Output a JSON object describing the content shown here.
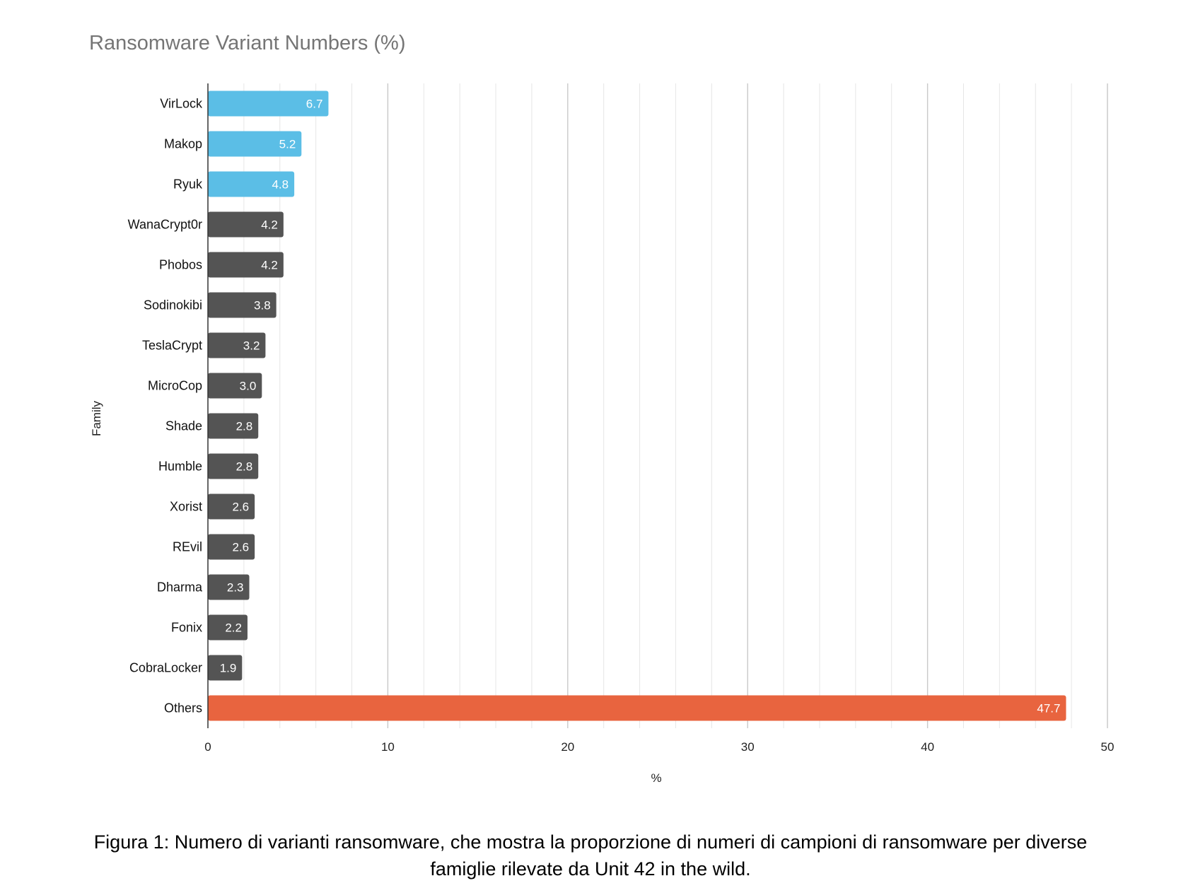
{
  "chart_data": {
    "type": "bar",
    "orientation": "horizontal",
    "title": "Ransomware Variant Numbers (%)",
    "xlabel": "%",
    "ylabel": "Family",
    "xlim": [
      0,
      50
    ],
    "xticks": [
      0,
      10,
      20,
      30,
      40,
      50
    ],
    "grid": true,
    "legend": "none",
    "categories": [
      "VirLock",
      "Makop",
      "Ryuk",
      "WanaCrypt0r",
      "Phobos",
      "Sodinokibi",
      "TeslaCrypt",
      "MicroCop",
      "Shade",
      "Humble",
      "Xorist",
      "REvil",
      "Dharma",
      "Fonix",
      "CobraLocker",
      "Others"
    ],
    "values": [
      6.7,
      5.2,
      4.8,
      4.2,
      4.2,
      3.8,
      3.2,
      3.0,
      2.8,
      2.8,
      2.6,
      2.6,
      2.3,
      2.2,
      1.9,
      47.7
    ],
    "data_labels": [
      "6.7",
      "5.2",
      "4.8",
      "4.2",
      "4.2",
      "3.8",
      "3.2",
      "3.0",
      "2.8",
      "2.8",
      "2.6",
      "2.6",
      "2.3",
      "2.2",
      "1.9",
      "47.7"
    ],
    "bar_colors": [
      "#5bbee6",
      "#5bbee6",
      "#5bbee6",
      "#545454",
      "#545454",
      "#545454",
      "#545454",
      "#545454",
      "#545454",
      "#545454",
      "#545454",
      "#545454",
      "#545454",
      "#545454",
      "#545454",
      "#e8643f"
    ]
  },
  "caption": {
    "line1": "Figura 1: Numero di varianti ransomware, che mostra la proporzione di numeri di campioni di ransomware per diverse",
    "line2": "famiglie rilevate da Unit 42 in the wild."
  }
}
